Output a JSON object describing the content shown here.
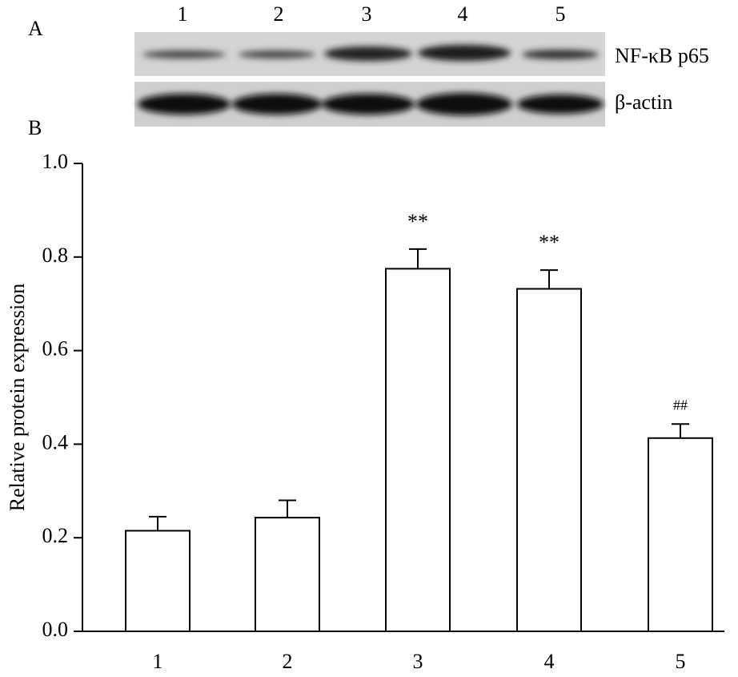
{
  "chart_data": {
    "type": "bar",
    "panel_label": "B",
    "y_label": "Relative protein expression",
    "categories": [
      "1",
      "2",
      "3",
      "4",
      "5"
    ],
    "values": [
      0.215,
      0.243,
      0.775,
      0.732,
      0.413
    ],
    "errors": [
      0.03,
      0.037,
      0.042,
      0.04,
      0.03
    ],
    "annotations": [
      null,
      null,
      "**",
      "**",
      "##"
    ],
    "color": "#ffffff",
    "ylim": [
      0,
      1
    ],
    "yticks": [
      {
        "value": 0,
        "label": "0.0"
      },
      0.2,
      0.4,
      0.6,
      0.8,
      {
        "value": 1,
        "label": "1.0"
      }
    ],
    "grid": false
  },
  "blot": {
    "panel_label": "A",
    "lanes": [
      "1",
      "2",
      "3",
      "4",
      "5"
    ],
    "rows": [
      "NF-κB p65",
      "β-actin"
    ]
  }
}
